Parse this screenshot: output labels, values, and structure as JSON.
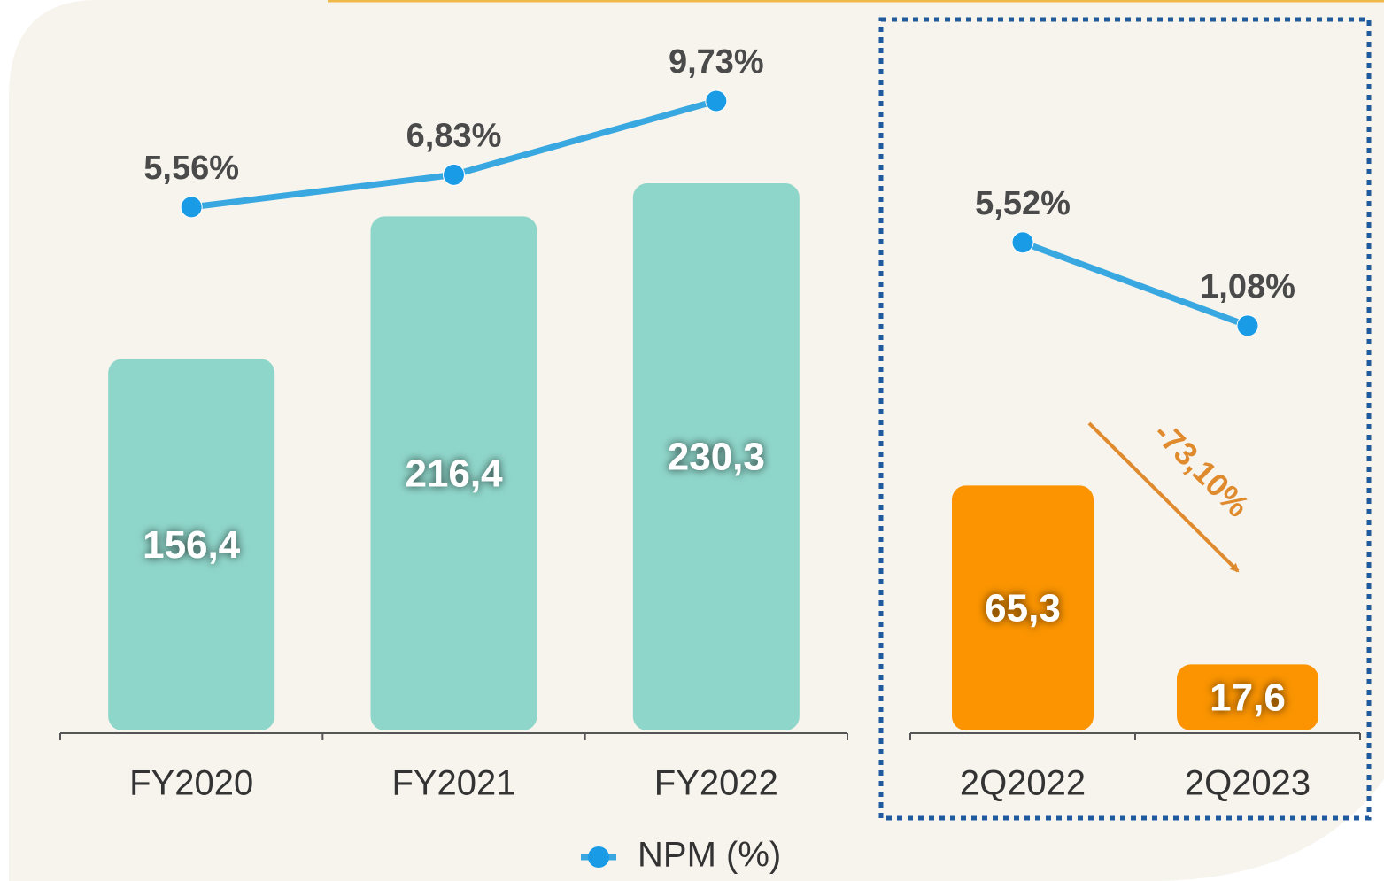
{
  "chart_data": [
    {
      "type": "bar",
      "categories": [
        "FY2020",
        "FY2021",
        "FY2022"
      ],
      "ylim": [
        0,
        300
      ],
      "y2lim": [
        -15,
        13
      ],
      "series": [
        {
          "color": "#8fd6ca",
          "values": [
            156.4,
            216.4,
            230.3
          ],
          "value_labels": [
            "156,4",
            "216,4",
            "230,3"
          ]
        },
        {
          "type": "line",
          "axis": "y2",
          "name": "NPM (%)",
          "color": "#3aa8e0",
          "values": [
            5.56,
            6.83,
            9.73
          ],
          "value_labels": [
            "5,56%",
            "6,83%",
            "9,73%"
          ]
        }
      ],
      "legend": "bottom"
    },
    {
      "type": "bar",
      "categories": [
        "2Q2022",
        "2Q2023"
      ],
      "ylim": [
        0,
        190
      ],
      "y2lim": [
        -20.5,
        17.5
      ],
      "series": [
        {
          "color": "#fb9400",
          "values": [
            65.3,
            17.6
          ],
          "value_labels": [
            "65,3",
            "17,6"
          ]
        },
        {
          "type": "line",
          "axis": "y2",
          "color": "#3aa8e0",
          "values": [
            5.52,
            1.08
          ],
          "value_labels": [
            "5,52%",
            "1,08%"
          ]
        }
      ],
      "annotation": "-73,10%"
    }
  ]
}
